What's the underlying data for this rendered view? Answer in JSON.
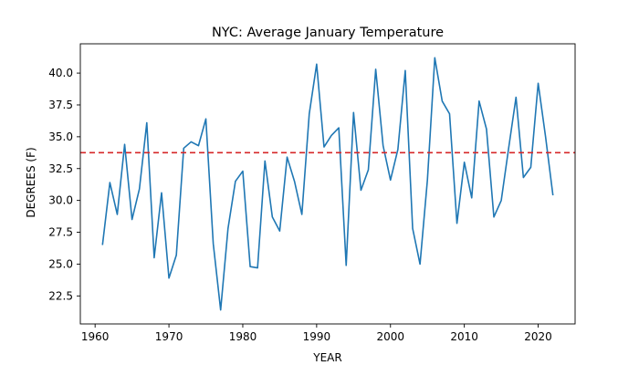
{
  "chart_data": {
    "type": "line",
    "title": "NYC: Average January Temperature",
    "xlabel": "YEAR",
    "ylabel": "DEGREES (F)",
    "xlim": [
      1958,
      2025
    ],
    "ylim": [
      20.3,
      42.3
    ],
    "x_ticks": [
      1960,
      1970,
      1980,
      1990,
      2000,
      2010,
      2020
    ],
    "y_ticks": [
      22.5,
      25.0,
      27.5,
      30.0,
      32.5,
      35.0,
      37.5,
      40.0
    ],
    "x_tick_labels": [
      "1960",
      "1970",
      "1980",
      "1990",
      "2000",
      "2010",
      "2020"
    ],
    "y_tick_labels": [
      "22.5",
      "25.0",
      "27.5",
      "30.0",
      "32.5",
      "35.0",
      "37.5",
      "40.0"
    ],
    "grid": false,
    "series": [
      {
        "color": "#1f77b4",
        "x": [
          1961,
          1962,
          1963,
          1964,
          1965,
          1966,
          1967,
          1968,
          1969,
          1970,
          1971,
          1972,
          1973,
          1974,
          1975,
          1976,
          1977,
          1978,
          1979,
          1980,
          1981,
          1982,
          1983,
          1984,
          1985,
          1986,
          1987,
          1988,
          1989,
          1990,
          1991,
          1992,
          1993,
          1994,
          1995,
          1996,
          1997,
          1998,
          1999,
          2000,
          2001,
          2002,
          2003,
          2004,
          2005,
          2006,
          2007,
          2008,
          2009,
          2010,
          2011,
          2012,
          2013,
          2014,
          2015,
          2016,
          2017,
          2018,
          2019,
          2020,
          2021,
          2022
        ],
        "values": [
          26.5,
          31.4,
          28.9,
          34.4,
          28.5,
          30.9,
          36.1,
          25.5,
          30.6,
          23.9,
          25.7,
          34.1,
          34.6,
          34.3,
          36.4,
          26.6,
          21.4,
          27.8,
          31.5,
          32.3,
          24.8,
          24.7,
          33.1,
          28.7,
          27.6,
          33.4,
          31.5,
          28.9,
          36.8,
          40.7,
          34.2,
          35.1,
          35.7,
          24.9,
          36.9,
          30.8,
          32.4,
          40.3,
          34.3,
          31.6,
          34.0,
          40.2,
          27.8,
          25.0,
          31.6,
          41.2,
          37.8,
          36.8,
          28.2,
          33.0,
          30.2,
          37.8,
          35.6,
          28.7,
          30.0,
          34.1,
          38.1,
          31.8,
          32.6,
          39.2,
          35.0,
          30.4
        ]
      }
    ],
    "reference_line": {
      "type": "horizontal",
      "value": 33.75,
      "color": "#d62728",
      "style": "dashed"
    }
  }
}
